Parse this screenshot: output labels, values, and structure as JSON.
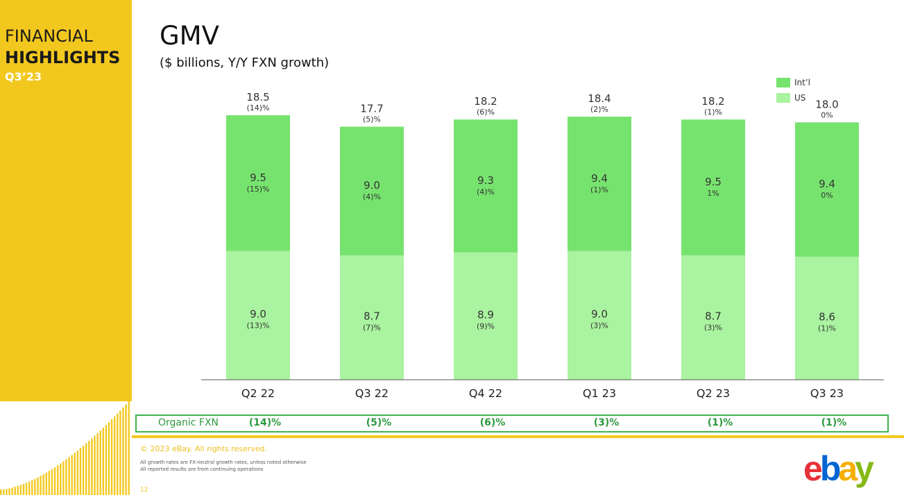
{
  "sidebar": {
    "line1": "FINANCIAL",
    "line2": "HIGHLIGHTS",
    "line3": "Q3’23"
  },
  "title": "GMV",
  "subtitle": "($ billions, Y/Y FXN growth)",
  "legend": [
    {
      "label": "Int’l",
      "color": "#77e36f"
    },
    {
      "label": "US",
      "color": "#aaf3a0"
    }
  ],
  "chart_data": {
    "type": "bar",
    "stacked": true,
    "categories": [
      "Q2 22",
      "Q3 22",
      "Q4 22",
      "Q1 23",
      "Q2 23",
      "Q3 23"
    ],
    "totals": [
      18.5,
      17.7,
      18.2,
      18.4,
      18.2,
      18.0
    ],
    "total_growth": [
      "(14)%",
      "(5)%",
      "(6)%",
      "(2)%",
      "(1)%",
      "0%"
    ],
    "series": [
      {
        "name": "US",
        "color": "#aaf3a0",
        "values": [
          9.0,
          8.7,
          8.9,
          9.0,
          8.7,
          8.6
        ],
        "growth": [
          "(13)%",
          "(7)%",
          "(9)%",
          "(3)%",
          "(3)%",
          "(1)%"
        ]
      },
      {
        "name": "Int’l",
        "color": "#77e36f",
        "values": [
          9.5,
          9.0,
          9.3,
          9.4,
          9.5,
          9.4
        ],
        "growth": [
          "(15)%",
          "(4)%",
          "(4)%",
          "(1)%",
          "1%",
          "0%"
        ]
      }
    ],
    "ylim": [
      0,
      20
    ],
    "legend_position": "top-right",
    "grid": false
  },
  "organic": {
    "label": "Organic FXN",
    "values": [
      "(14)%",
      "(5)%",
      "(6)%",
      "(3)%",
      "(1)%",
      "(1)%"
    ]
  },
  "footer": {
    "copyright": "© 2023 eBay. All rights reserved.",
    "note1": "All growth rates are FX-neutral growth rates, unless noted otherwise",
    "note2": "All reported results are from continuing operations",
    "page": "12"
  },
  "logo": {
    "letters": [
      "e",
      "b",
      "a",
      "y"
    ],
    "colors": [
      "#e53238",
      "#0064d2",
      "#f5af02",
      "#86b817"
    ]
  }
}
